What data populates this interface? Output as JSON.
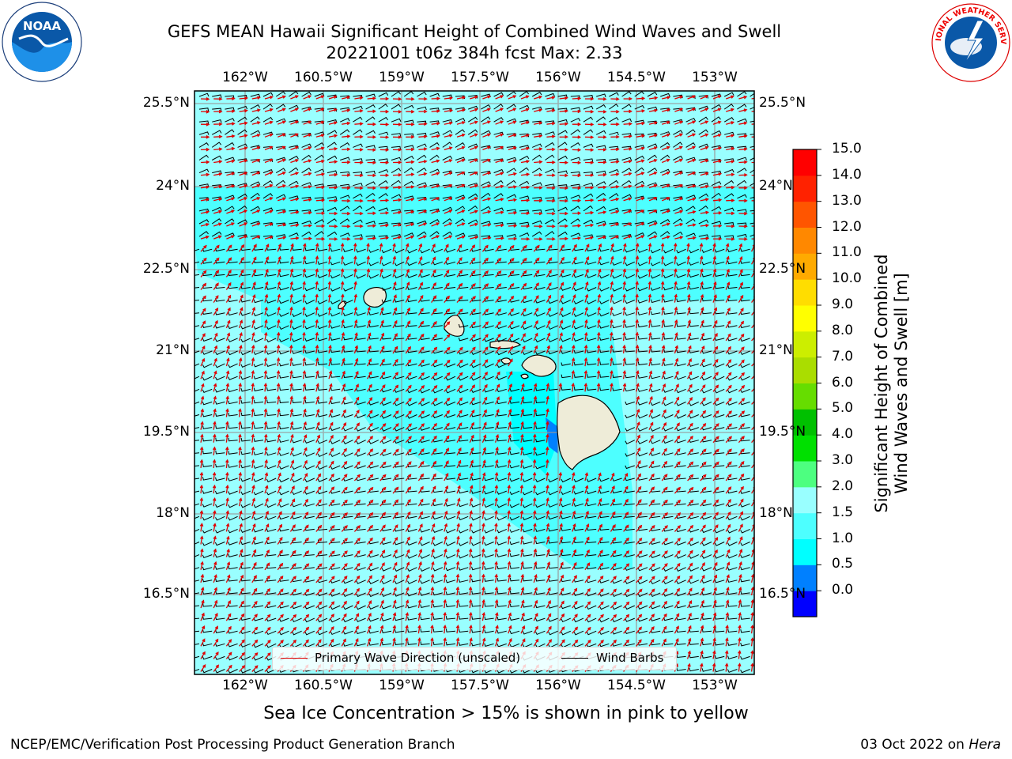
{
  "title": {
    "line1": "GEFS MEAN Hawaii Significant Height of Combined Wind Waves and Swell",
    "line2": "20221001 t06z 384h fcst   Max: 2.33"
  },
  "logos": {
    "left": "NOAA",
    "right": "NATIONAL WEATHER SERVICE"
  },
  "map": {
    "longitude_labels": [
      "162°W",
      "160.5°W",
      "159°W",
      "157.5°W",
      "156°W",
      "154.5°W",
      "153°W"
    ],
    "latitude_labels": [
      "25.5°N",
      "24°N",
      "22.5°N",
      "21°N",
      "19.5°N",
      "18°N",
      "16.5°N"
    ],
    "ocean_color": "#99ffff",
    "wave_arrow_color": "#e00000",
    "wind_barb_color": "#000000"
  },
  "legend": {
    "wave_direction": "Primary Wave Direction (unscaled)",
    "wind_barbs": "Wind Barbs"
  },
  "colorbar": {
    "label_line1": "Significant Height of Combined",
    "label_line2": "Wind Waves and Swell [m]",
    "ticks": [
      "15.0",
      "14.0",
      "13.0",
      "12.0",
      "11.0",
      "10.0",
      "9.0",
      "8.0",
      "7.0",
      "6.0",
      "5.0",
      "4.0",
      "3.0",
      "2.0",
      "1.5",
      "1.0",
      "0.5",
      "0.0"
    ],
    "colors_bottom_to_top": [
      "#0000ff",
      "#0080ff",
      "#00ffff",
      "#4dffff",
      "#99ffff",
      "#4dff80",
      "#00e000",
      "#00c000",
      "#66dd00",
      "#aadd00",
      "#ccee00",
      "#ffff00",
      "#ffdd00",
      "#ffaa00",
      "#ff8800",
      "#ff5500",
      "#ff2200",
      "#ff0000"
    ]
  },
  "sea_ice_note": "Sea Ice Concentration > 15% is shown in pink to yellow",
  "footer": {
    "left": "NCEP/EMC/Verification Post Processing Product Generation Branch",
    "right_prefix": "03 Oct 2022 on ",
    "right_machine": "Hera"
  }
}
